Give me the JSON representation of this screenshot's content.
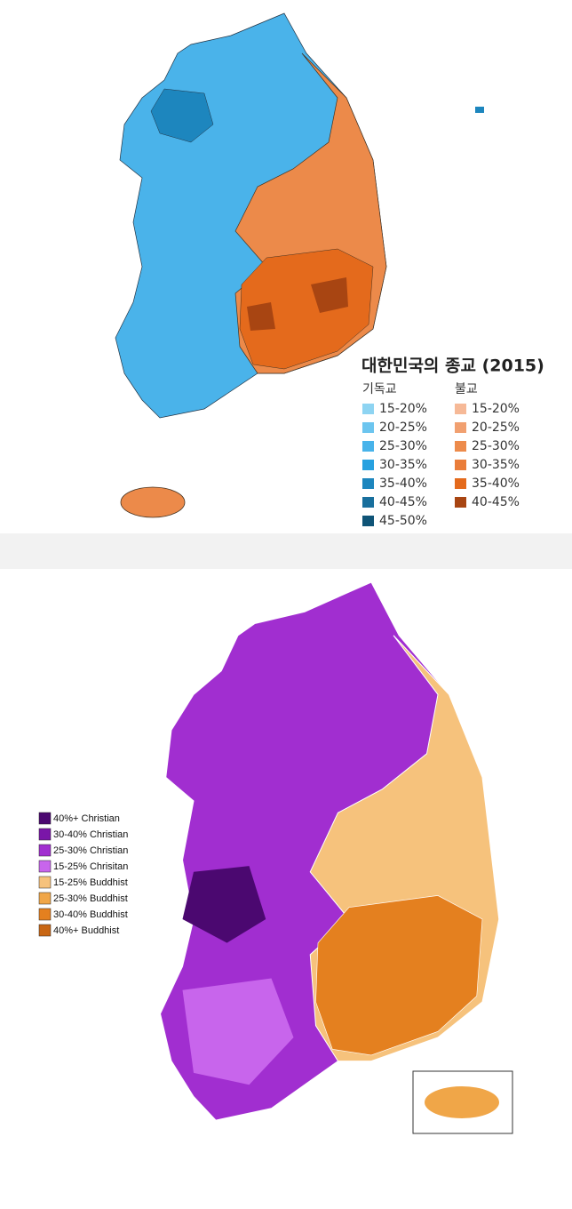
{
  "top_map": {
    "title": "대한민국의 종교 (2015)",
    "legend": [
      {
        "header": "기독교",
        "items": [
          {
            "label": "15-20%",
            "color": "#8ed4f2"
          },
          {
            "label": "20-25%",
            "color": "#6cc5ef"
          },
          {
            "label": "25-30%",
            "color": "#48b3ea"
          },
          {
            "label": "30-35%",
            "color": "#27a1e0"
          },
          {
            "label": "35-40%",
            "color": "#1d86be"
          },
          {
            "label": "40-45%",
            "color": "#186f9d"
          },
          {
            "label": "45-50%",
            "color": "#0f5477"
          }
        ]
      },
      {
        "header": "불교",
        "items": [
          {
            "label": "15-20%",
            "color": "#f6b997"
          },
          {
            "label": "20-25%",
            "color": "#f1a070"
          },
          {
            "label": "25-30%",
            "color": "#ed8b4b"
          },
          {
            "label": "30-35%",
            "color": "#ea7d3a"
          },
          {
            "label": "35-40%",
            "color": "#e46a1c"
          },
          {
            "label": "40-45%",
            "color": "#a84512"
          }
        ]
      }
    ]
  },
  "bottom_map": {
    "legend": [
      {
        "label": "40%+ Christian",
        "color": "#4b0870"
      },
      {
        "label": "30-40% Christian",
        "color": "#7a16a8"
      },
      {
        "label": "25-30% Christian",
        "color": "#a12ed0"
      },
      {
        "label": "15-25% Chrisitan",
        "color": "#c865ec"
      },
      {
        "label": "15-25% Buddhist",
        "color": "#f6c27c"
      },
      {
        "label": "25-30% Buddhist",
        "color": "#f0a648"
      },
      {
        "label": "30-40% Buddhist",
        "color": "#e4801f"
      },
      {
        "label": "40%+ Buddhist",
        "color": "#c86614"
      }
    ]
  }
}
